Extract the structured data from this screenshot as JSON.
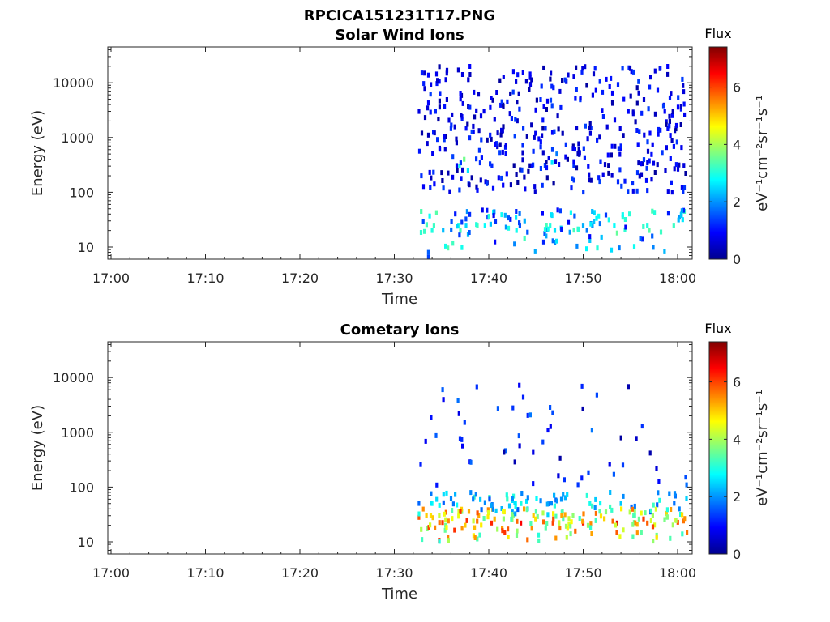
{
  "figure_title": "RPCICA151231T17.PNG",
  "chart_data": [
    {
      "type": "heatmap",
      "title": "Solar Wind Ions",
      "xlabel": "Time",
      "ylabel": "Energy (eV)",
      "x_ticks": [
        "17:00",
        "17:10",
        "17:20",
        "17:30",
        "17:40",
        "17:50",
        "18:00"
      ],
      "y_scale": "log",
      "y_ticks": [
        "10",
        "100",
        "1000",
        "10000"
      ],
      "ylim": [
        6,
        45000
      ],
      "colorbar": {
        "title": "Flux",
        "unit": "eV⁻¹cm⁻²sr⁻¹s⁻¹",
        "ticks": [
          "0",
          "2",
          "4",
          "6"
        ],
        "range": [
          0,
          7.4
        ]
      },
      "data_window": {
        "start": "17:32",
        "end": "18:01"
      },
      "cells": [
        {
          "t": "17:33.6",
          "e": 8,
          "v": 1.6
        },
        {
          "t": "17:33.6",
          "e": 6.5,
          "v": 1.4
        },
        {
          "t": "17:34.0",
          "e": 20,
          "v": 3.0
        },
        {
          "t": "17:34.2",
          "e": 25,
          "v": 3.2
        },
        {
          "t": "17:36.8",
          "e": 25,
          "v": 3.0
        },
        {
          "t": "17:37.0",
          "e": 20,
          "v": 3.3
        },
        {
          "t": "17:37.6",
          "e": 25,
          "v": 2.5
        },
        {
          "t": "17:39.6",
          "e": 25,
          "v": 2.8
        },
        {
          "t": "17:39.9",
          "e": 35,
          "v": 1.2
        },
        {
          "t": "17:43.3",
          "e": 25,
          "v": 1.5
        },
        {
          "t": "17:43.8",
          "e": 30,
          "v": 2.2
        },
        {
          "t": "17:46.5",
          "e": 25,
          "v": 3.0
        },
        {
          "t": "17:47.0",
          "e": 20,
          "v": 2.6
        },
        {
          "t": "17:50.0",
          "e": 25,
          "v": 2.2
        },
        {
          "t": "17:50.4",
          "e": 20,
          "v": 1.8
        },
        {
          "t": "17:53.3",
          "e": 25,
          "v": 2.8
        },
        {
          "t": "17:53.6",
          "e": 18,
          "v": 3.5
        },
        {
          "t": "17:56.8",
          "e": 25,
          "v": 3.0
        },
        {
          "t": "17:57.0",
          "e": 20,
          "v": 3.4
        },
        {
          "t": "17:59.6",
          "e": 25,
          "v": 3.2
        },
        {
          "t": "18:00.2",
          "e": 35,
          "v": 2.0
        },
        {
          "t": "17:36.9",
          "e": 300,
          "v": 3.0
        },
        {
          "t": "17:37.4",
          "e": 400,
          "v": 3.6
        },
        {
          "t": "17:37.8",
          "e": 250,
          "v": 2.6
        },
        {
          "t": "17:46.7",
          "e": 350,
          "v": 2.6
        },
        {
          "t": "17:47.2",
          "e": 500,
          "v": 1.8
        }
      ]
    },
    {
      "type": "heatmap",
      "title": "Cometary Ions",
      "xlabel": "Time",
      "ylabel": "Energy (eV)",
      "x_ticks": [
        "17:00",
        "17:10",
        "17:20",
        "17:30",
        "17:40",
        "17:50",
        "18:00"
      ],
      "y_scale": "log",
      "y_ticks": [
        "10",
        "100",
        "1000",
        "10000"
      ],
      "ylim": [
        6,
        45000
      ],
      "colorbar": {
        "title": "Flux",
        "unit": "eV⁻¹cm⁻²sr⁻¹s⁻¹",
        "ticks": [
          "0",
          "2",
          "4",
          "6"
        ],
        "range": [
          0,
          7.4
        ]
      },
      "data_window": {
        "start": "17:32",
        "end": "18:01"
      },
      "cells": [
        {
          "t": "17:34.3",
          "e": 18,
          "v": 5.5
        },
        {
          "t": "17:37.5",
          "e": 20,
          "v": 5.0
        },
        {
          "t": "17:40.3",
          "e": 22,
          "v": 6.2
        },
        {
          "t": "17:43.4",
          "e": 22,
          "v": 6.5
        },
        {
          "t": "17:46.8",
          "e": 22,
          "v": 6.0
        },
        {
          "t": "17:50.0",
          "e": 22,
          "v": 6.3
        },
        {
          "t": "17:53.6",
          "e": 22,
          "v": 6.7
        },
        {
          "t": "17:56.8",
          "e": 22,
          "v": 5.8
        },
        {
          "t": "17:59.8",
          "e": 25,
          "v": 4.8
        },
        {
          "t": "17:34.0",
          "e": 50,
          "v": 2.8
        },
        {
          "t": "17:44.0",
          "e": 55,
          "v": 2.6
        },
        {
          "t": "17:54.0",
          "e": 50,
          "v": 2.4
        }
      ]
    }
  ]
}
